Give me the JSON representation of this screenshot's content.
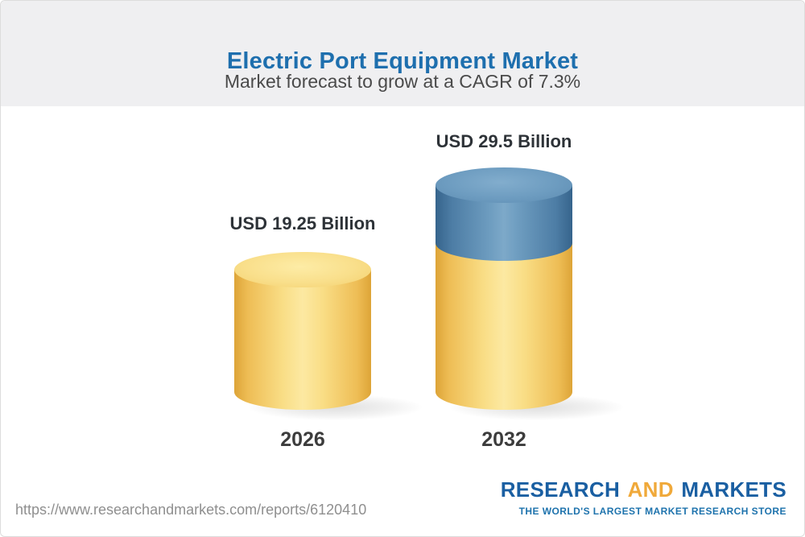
{
  "header": {
    "title": "Electric Port Equipment Market",
    "subtitle": "Market forecast to grow at a CAGR of 7.3%"
  },
  "chart_data": {
    "type": "bar",
    "style": "3d-cylinder",
    "title": "Electric Port Equipment Market",
    "subtitle": "Market forecast to grow at a CAGR of 7.3%",
    "cagr_percent": 7.3,
    "unit": "USD Billion",
    "categories": [
      "2026",
      "2032"
    ],
    "values": [
      19.25,
      29.5
    ],
    "bar_labels": [
      "USD 19.25 Billion",
      "USD 29.5 Billion"
    ],
    "growth_segment_value": 10.25,
    "colors": {
      "base_segment": "#F3CA60",
      "growth_segment": "#6497BC"
    },
    "legend": "none",
    "grid": false
  },
  "footer": {
    "url": "https://www.researchandmarkets.com/reports/6120410",
    "logo": {
      "part1": "RESEARCH",
      "part2": "AND",
      "part3": "MARKETS",
      "tagline": "THE WORLD'S LARGEST MARKET RESEARCH STORE"
    }
  }
}
